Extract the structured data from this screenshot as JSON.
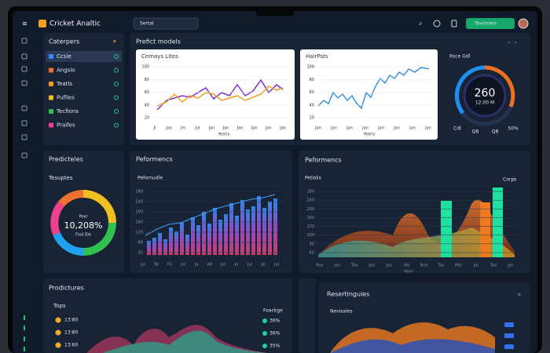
{
  "app": {
    "title": "Cricket Analtic",
    "search": "Sertal",
    "button": "Tavonnes"
  },
  "sidebar": {
    "title": "Caterpers",
    "items": [
      "Ccsie",
      "Angsio",
      "Teatls",
      "Pufiles",
      "Tecfions",
      "Praifes"
    ]
  },
  "models": {
    "title": "Prefict models",
    "chart1": {
      "title": "Cemays Lites",
      "y_labels": [
        "100",
        "80",
        "60",
        "40",
        "20"
      ],
      "x_labels": [
        "Jl",
        "Jan",
        "Jm",
        "Jul",
        "Jan",
        "Jan",
        "Jan",
        "Jan",
        "Jan",
        "Jan"
      ],
      "x_title": "Yeerly"
    },
    "chart2": {
      "title": "HairPsts",
      "y_labels": [
        "100",
        "80",
        "60",
        "40",
        "20"
      ],
      "x_labels": [
        "Jan",
        "Jan",
        "Jan",
        "Jan",
        "Jan",
        "Jan",
        "Jan",
        "Jan"
      ],
      "x_title": "Yeerly"
    },
    "gauge": {
      "title": "Rsce Gdl",
      "value": "260",
      "sub": "12,00 M",
      "labels": [
        "Cdl",
        "Q8",
        "Q8",
        "50%"
      ]
    }
  },
  "predictions": {
    "title": "Predicteles",
    "subtitle": "Tesuptes",
    "center_small": "Pear",
    "center_value": "10,208%",
    "center_sub": "Fsut Ele"
  },
  "performance1": {
    "title": "Peformencs",
    "chart_title": "Pefornudle",
    "y_labels": [
      "280",
      "240",
      "200",
      "160",
      "120",
      "80",
      "50"
    ],
    "x_labels": [
      "Jul",
      "Tel",
      "F5",
      "Jul",
      "Ja",
      "A9",
      "Jul",
      "Jo",
      "Jul",
      "Jsl",
      "Jul"
    ]
  },
  "performance2": {
    "title": "Peformencs",
    "chart_title": "Petislis",
    "legend": "Corps",
    "y_labels": [
      "280",
      "240",
      "200",
      "160",
      "120",
      "100",
      "80",
      "60"
    ],
    "x_labels": [
      "Nuc",
      "Jan",
      "Tea",
      "Jan",
      "Jus",
      "Vel",
      "Nca",
      "Tuc",
      "Mar",
      "Jul",
      "Tue",
      "Jan"
    ],
    "x_title": "Yeerl"
  },
  "products": {
    "title": "Prodictures",
    "subtitle": "Tops",
    "times": [
      "13:80",
      "13:80",
      "13:60"
    ],
    "legend_title": "Foackge",
    "percents": [
      "36%",
      "36%",
      "35%"
    ]
  },
  "reports": {
    "title": "Resertinguies",
    "subtitle": "Nevisales"
  }
}
